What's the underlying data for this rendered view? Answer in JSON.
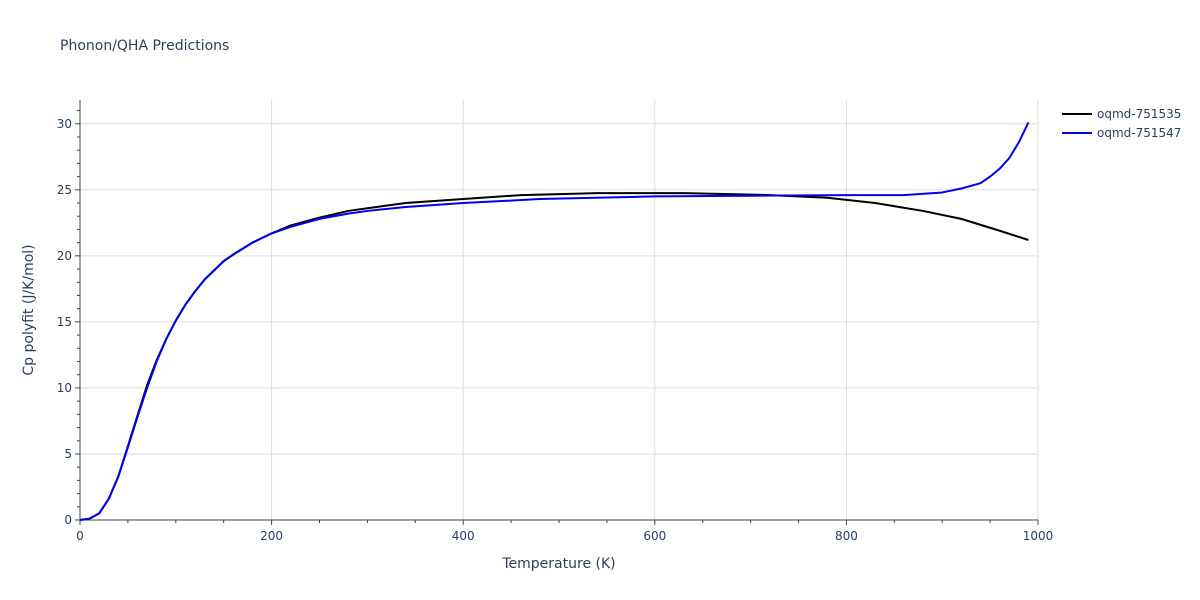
{
  "chart_data": {
    "type": "line",
    "title": "Phonon/QHA Predictions",
    "xlabel": "Temperature (K)",
    "ylabel": "Cp polyfit (J/K/mol)",
    "xlim": [
      0,
      1000
    ],
    "ylim": [
      0,
      31.8
    ],
    "xticks": [
      0,
      200,
      400,
      600,
      800,
      1000
    ],
    "yticks": [
      0,
      5,
      10,
      15,
      20,
      25,
      30
    ],
    "grid": true,
    "legend_position": "top-right",
    "series": [
      {
        "name": "oqmd-751535",
        "color": "#000000",
        "x": [
          0,
          10,
          20,
          30,
          40,
          50,
          60,
          70,
          80,
          90,
          100,
          110,
          120,
          130,
          140,
          150,
          160,
          180,
          200,
          220,
          250,
          280,
          300,
          340,
          400,
          460,
          540,
          630,
          720,
          780,
          830,
          880,
          920,
          960,
          990
        ],
        "y": [
          0,
          0.1,
          0.5,
          1.6,
          3.3,
          5.6,
          7.9,
          10.2,
          12.1,
          13.7,
          15.1,
          16.3,
          17.3,
          18.2,
          18.9,
          19.6,
          20.1,
          21.0,
          21.7,
          22.3,
          22.9,
          23.4,
          23.6,
          24.0,
          24.3,
          24.6,
          24.75,
          24.75,
          24.6,
          24.4,
          24.0,
          23.4,
          22.8,
          21.9,
          21.2
        ]
      },
      {
        "name": "oqmd-751547",
        "color": "#0000ee",
        "x": [
          0,
          10,
          20,
          30,
          40,
          50,
          60,
          70,
          80,
          90,
          100,
          110,
          120,
          130,
          140,
          150,
          160,
          180,
          200,
          220,
          250,
          280,
          300,
          340,
          400,
          480,
          600,
          700,
          800,
          860,
          900,
          920,
          940,
          950,
          960,
          970,
          980,
          990
        ],
        "y": [
          0,
          0.1,
          0.5,
          1.6,
          3.3,
          5.5,
          7.8,
          10.0,
          12.0,
          13.7,
          15.1,
          16.3,
          17.3,
          18.2,
          18.9,
          19.6,
          20.1,
          21.0,
          21.7,
          22.2,
          22.8,
          23.2,
          23.4,
          23.7,
          24.0,
          24.3,
          24.5,
          24.55,
          24.6,
          24.6,
          24.8,
          25.1,
          25.5,
          26.0,
          26.6,
          27.4,
          28.6,
          30.1
        ]
      }
    ]
  }
}
